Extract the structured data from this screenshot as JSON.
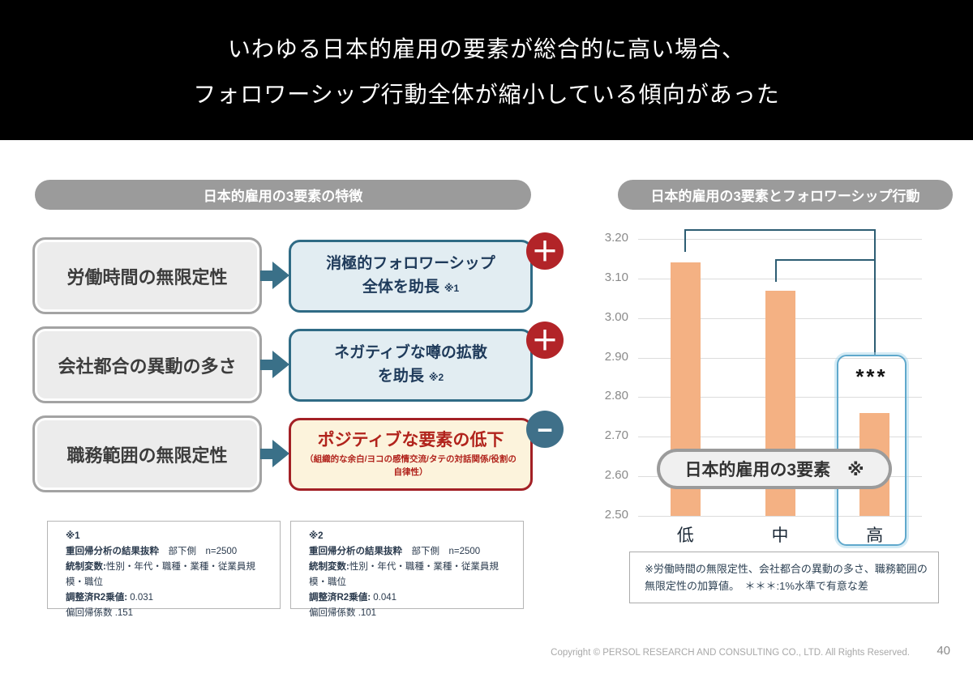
{
  "title": {
    "line1": "いわゆる日本的雇用の要素が総合的に高い場合、",
    "line2": "フォロワーシップ行動全体が縮小している傾向があった"
  },
  "left": {
    "header": "日本的雇用の3要素の特徴",
    "rows": [
      {
        "factor": "労働時間の無限定性",
        "effect_line1": "消極的フォロワーシップ",
        "effect_line2": "全体を助長",
        "ref": "※1",
        "sign": "＋"
      },
      {
        "factor": "会社都合の異動の多さ",
        "effect_line1": "ネガティブな噂の拡散",
        "effect_line2": "を助長",
        "ref": "※2",
        "sign": "＋"
      },
      {
        "factor": "職務範囲の無限定性",
        "effect_title": "ポジティブな要素の低下",
        "effect_sub": "（組織的な余白/ヨコの感情交流/タテの対話関係/役割の自律性）",
        "sign": "−"
      }
    ],
    "footnotes": [
      {
        "lines": [
          {
            "lead": "※1",
            "rest": ""
          },
          {
            "lead": "重回帰分析の結果抜粋",
            "rest": "　部下側　n=2500"
          },
          {
            "lead": "統制変数:",
            "rest": "性別・年代・職種・業種・従業員規模・職位"
          },
          {
            "lead": "調整済R2乗値:",
            "rest": " 0.031"
          },
          {
            "lead": "",
            "rest": "偏回帰係数 .151"
          }
        ]
      },
      {
        "lines": [
          {
            "lead": "※2",
            "rest": ""
          },
          {
            "lead": "重回帰分析の結果抜粋",
            "rest": "　部下側　n=2500"
          },
          {
            "lead": "統制変数:",
            "rest": "性別・年代・職種・業種・従業員規模・職位"
          },
          {
            "lead": "調整済R2乗値:",
            "rest": " 0.041"
          },
          {
            "lead": "",
            "rest": "偏回帰係数 .101"
          }
        ]
      }
    ]
  },
  "right": {
    "header": "日本的雇用の3要素とフォロワーシップ行動",
    "overlay_label": "日本的雇用の3要素　※",
    "significance": "***",
    "note_line1": "※労働時間の無限定性、会社都合の異動の多さ、職務範囲の",
    "note_line2": "無限定性の加算値。　＊＊＊:1%水準で有意な差"
  },
  "chart_data": {
    "type": "bar",
    "categories": [
      "低",
      "中",
      "高"
    ],
    "values": [
      3.14,
      3.07,
      2.76
    ],
    "title": "日本的雇用の3要素とフォロワーシップ行動",
    "xlabel": "日本的雇用の3要素（低・中・高）",
    "ylabel": "",
    "ylim": [
      2.5,
      3.2
    ],
    "yticks": [
      "3.20",
      "3.10",
      "3.00",
      "2.90",
      "2.80",
      "2.70",
      "2.60",
      "2.50"
    ],
    "grid": true,
    "legend": "none",
    "bar_color": "#F4B183",
    "significance_label": "***",
    "significance_brackets": [
      [
        "低",
        "高"
      ],
      [
        "中",
        "高"
      ]
    ]
  },
  "footer": {
    "copyright": "Copyright © PERSOL RESEARCH AND CONSULTING CO., LTD. All Rights Reserved.",
    "page": "40"
  },
  "colors": {
    "banner_bg": "#000000",
    "capsule_bg": "#9B9B9B",
    "factor_box_fill": "#ECECEC",
    "factor_box_border": "#A3A3A3",
    "effect_box_fill": "#E2EDF2",
    "effect_box_border": "#2F6B85",
    "effect_text": "#1E3A5A",
    "red_box_fill": "#FCF3DC",
    "red_box_border": "#A32025",
    "red_text": "#B1231C",
    "plus_badge": "#B22428",
    "minus_badge": "#3F7089",
    "arrow": "#3A7088",
    "bar": "#F4B183",
    "bracket": "#2D5D73",
    "highlight_border": "#5FA8CC"
  }
}
